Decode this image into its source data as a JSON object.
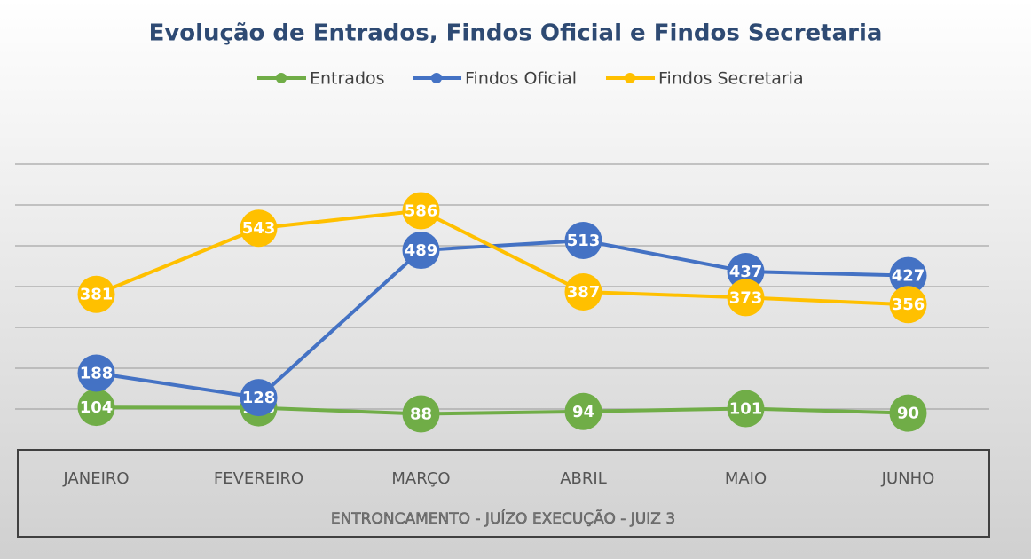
{
  "chart_data": {
    "type": "line",
    "title": "Evolução de Entrados, Findos Oficial e Findos Secretaria",
    "x_label": "ENTRONCAMENTO - JUÍZO EXECUÇÃO - JUIZ 3",
    "categories": [
      "JANEIRO",
      "FEVEREIRO",
      "MARÇO",
      "ABRIL",
      "MAIO",
      "JUNHO"
    ],
    "series": [
      {
        "name": "Entrados",
        "color": "#70ad47",
        "values": [
          104,
          103,
          88,
          94,
          101,
          90
        ]
      },
      {
        "name": "Findos Oficial",
        "color": "#4472c4",
        "values": [
          188,
          128,
          489,
          513,
          437,
          427
        ]
      },
      {
        "name": "Findos Secretaria",
        "color": "#ffc000",
        "values": [
          381,
          543,
          586,
          387,
          373,
          356
        ]
      }
    ],
    "ylim": [
      0,
      700
    ],
    "yticks": [
      100,
      200,
      300,
      400,
      500,
      600,
      700
    ],
    "grid": true,
    "legend": "top"
  }
}
